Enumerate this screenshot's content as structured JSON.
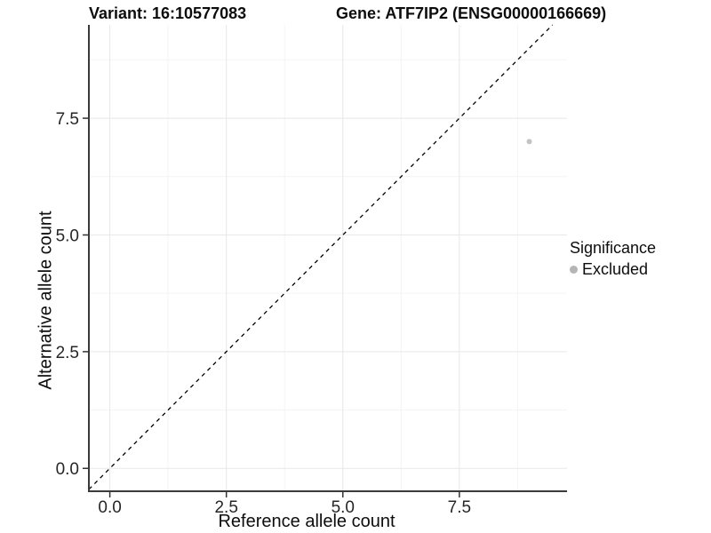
{
  "chart_data": {
    "type": "scatter",
    "title_left": "Variant: 16:10577083",
    "title_right": "Gene: ATF7IP2 (ENSG00000166669)",
    "xlabel": "Reference allele count",
    "ylabel": "Alternative allele count",
    "xlim": [
      -0.45,
      9.81
    ],
    "ylim": [
      -0.49,
      9.5
    ],
    "x_major_ticks": [
      0,
      2.5,
      5,
      7.5
    ],
    "x_tick_labels": [
      "0.0",
      "2.5",
      "5.0",
      "7.5"
    ],
    "y_major_ticks": [
      0,
      2.5,
      5,
      7.5
    ],
    "y_tick_labels": [
      "0.0",
      "2.5",
      "5.0",
      "7.5"
    ],
    "x_minor_ticks": [
      1.25,
      3.75,
      6.25,
      8.75
    ],
    "y_minor_ticks": [
      1.25,
      3.75,
      6.25,
      8.75
    ],
    "grid": "major and minor gridlines on, white panel background",
    "reference_line": {
      "type": "identity y=x",
      "style": "dashed",
      "color": "#000000"
    },
    "series": [
      {
        "name": "Excluded",
        "color": "#c3c3c3",
        "points": [
          {
            "x": 9,
            "y": 7
          }
        ]
      }
    ],
    "legend": {
      "title": "Significance",
      "position": "right",
      "entries": [
        {
          "label": "Excluded",
          "color": "#b5b5b5"
        }
      ]
    },
    "style": {
      "major_grid_color": "#e8e8e8",
      "minor_grid_color": "#f4f4f4",
      "axis_line_color": "#3a3a3a",
      "tick_color": "#333333",
      "tick_label_color": "#262626"
    }
  }
}
